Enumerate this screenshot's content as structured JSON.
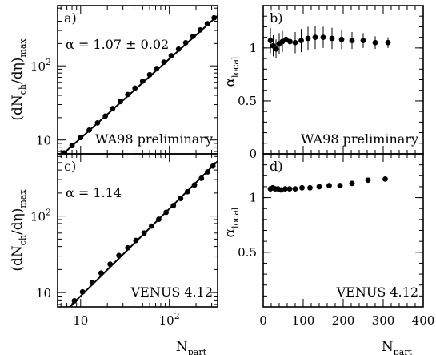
{
  "chart_data": [
    {
      "panel": "a)",
      "type": "scatter",
      "xscale": "log",
      "yscale": "log",
      "xlim": [
        5.5,
        350
      ],
      "ylim": [
        6.5,
        650
      ],
      "ylabel": "(dN",
      "ylabel_sub1": "ch",
      "ylabel_mid": "/dη)",
      "ylabel_sub2": "max",
      "ytick_labels": [
        {
          "value": 10,
          "base": "10",
          "exp": ""
        },
        {
          "value": 100,
          "base": "10",
          "exp": "2"
        }
      ],
      "annotation": "α =  1.07 ±  0.02",
      "caption": "WA98 preliminary",
      "points": [
        {
          "x": 6.5,
          "y": 6.7
        },
        {
          "x": 8.0,
          "y": 8.4
        },
        {
          "x": 10.0,
          "y": 10.8
        },
        {
          "x": 12.5,
          "y": 13.6
        },
        {
          "x": 15.5,
          "y": 17.0
        },
        {
          "x": 19.0,
          "y": 21.0
        },
        {
          "x": 23.0,
          "y": 26.5
        },
        {
          "x": 28.0,
          "y": 33.0
        },
        {
          "x": 34.0,
          "y": 41.0
        },
        {
          "x": 41.0,
          "y": 50.0
        },
        {
          "x": 50.0,
          "y": 62.0
        },
        {
          "x": 60.0,
          "y": 76.0
        },
        {
          "x": 72.0,
          "y": 92.0
        },
        {
          "x": 87.0,
          "y": 112.0
        },
        {
          "x": 105.0,
          "y": 137.0
        },
        {
          "x": 127.0,
          "y": 168.0
        },
        {
          "x": 153.0,
          "y": 205.0
        },
        {
          "x": 185.0,
          "y": 250.0
        },
        {
          "x": 223.0,
          "y": 305.0
        },
        {
          "x": 268.0,
          "y": 370.0
        },
        {
          "x": 320.0,
          "y": 445.0
        }
      ],
      "fit": {
        "x": [
          5.8,
          350
        ],
        "y": [
          5.9,
          474
        ]
      }
    },
    {
      "panel": "b)",
      "type": "scatter",
      "xscale": "linear",
      "yscale": "linear",
      "xlim": [
        0,
        400
      ],
      "ylim": [
        0,
        1.4
      ],
      "ylabel": "α",
      "ylabel_sub": "local",
      "ytick_labels": [
        {
          "value": 0,
          "label": "0"
        },
        {
          "value": 0.5,
          "label": "0.5"
        },
        {
          "value": 1,
          "label": "1"
        }
      ],
      "caption": "WA98 preliminary",
      "points": [
        {
          "x": 18,
          "y": 1.07,
          "err": 0.12
        },
        {
          "x": 25,
          "y": 1.02,
          "err": 0.1
        },
        {
          "x": 32,
          "y": 0.99,
          "err": 0.09
        },
        {
          "x": 40,
          "y": 1.04,
          "err": 0.1
        },
        {
          "x": 48,
          "y": 1.06,
          "err": 0.1
        },
        {
          "x": 57,
          "y": 1.08,
          "err": 0.1
        },
        {
          "x": 67,
          "y": 1.06,
          "err": 0.1
        },
        {
          "x": 80,
          "y": 1.05,
          "err": 0.1
        },
        {
          "x": 95,
          "y": 1.07,
          "err": 0.11
        },
        {
          "x": 112,
          "y": 1.09,
          "err": 0.11
        },
        {
          "x": 130,
          "y": 1.1,
          "err": 0.11
        },
        {
          "x": 150,
          "y": 1.1,
          "err": 0.1
        },
        {
          "x": 172,
          "y": 1.09,
          "err": 0.1
        },
        {
          "x": 196,
          "y": 1.08,
          "err": 0.09
        },
        {
          "x": 222,
          "y": 1.07,
          "err": 0.08
        },
        {
          "x": 250,
          "y": 1.07,
          "err": 0.07
        },
        {
          "x": 280,
          "y": 1.05,
          "err": 0.06
        },
        {
          "x": 312,
          "y": 1.05,
          "err": 0.05
        }
      ]
    },
    {
      "panel": "c)",
      "type": "scatter",
      "xscale": "log",
      "yscale": "log",
      "xlim": [
        5.5,
        350
      ],
      "ylim": [
        6.5,
        650
      ],
      "ylabel": "(dN",
      "ylabel_sub1": "ch",
      "ylabel_mid": "/dη)",
      "ylabel_sub2": "max",
      "ytick_labels": [
        {
          "value": 10,
          "base": "10",
          "exp": ""
        },
        {
          "value": 100,
          "base": "10",
          "exp": "2"
        }
      ],
      "xtick_labels": [
        {
          "value": 10,
          "base": "10",
          "exp": ""
        },
        {
          "value": 100,
          "base": "10",
          "exp": "2"
        }
      ],
      "xlabel": "N",
      "xlabel_sub": "part",
      "annotation": "α =  1.14",
      "caption": "VENUS 4.12",
      "points": [
        {
          "x": 8.5,
          "y": 7.8
        },
        {
          "x": 10.5,
          "y": 10.2
        },
        {
          "x": 13.5,
          "y": 13.5
        },
        {
          "x": 17.0,
          "y": 18.0
        },
        {
          "x": 21.5,
          "y": 23.5
        },
        {
          "x": 27.0,
          "y": 30.5
        },
        {
          "x": 34.0,
          "y": 38.5
        },
        {
          "x": 42.0,
          "y": 48.0
        },
        {
          "x": 52.0,
          "y": 60.0
        },
        {
          "x": 63.0,
          "y": 74.0
        },
        {
          "x": 76.0,
          "y": 91.0
        },
        {
          "x": 92.0,
          "y": 112.0
        },
        {
          "x": 111.0,
          "y": 137.0
        },
        {
          "x": 134.0,
          "y": 170.0
        },
        {
          "x": 160.0,
          "y": 208.0
        },
        {
          "x": 192.0,
          "y": 255.0
        },
        {
          "x": 230.0,
          "y": 312.0
        },
        {
          "x": 270.0,
          "y": 378.0
        },
        {
          "x": 310.0,
          "y": 450.0
        }
      ],
      "fit": {
        "x": [
          6.9,
          350
        ],
        "y": [
          5.9,
          520
        ]
      }
    },
    {
      "panel": "d)",
      "type": "scatter",
      "xscale": "linear",
      "yscale": "linear",
      "xlim": [
        0,
        400
      ],
      "ylim": [
        0,
        1.4
      ],
      "ylabel": "α",
      "ylabel_sub": "local",
      "ytick_labels": [
        {
          "value": 0.5,
          "label": "0.5"
        },
        {
          "value": 1,
          "label": "1"
        }
      ],
      "xtick_labels": [
        {
          "value": 0,
          "label": "0"
        },
        {
          "value": 100,
          "label": "100"
        },
        {
          "value": 200,
          "label": "200"
        },
        {
          "value": 300,
          "label": "300"
        },
        {
          "value": 400,
          "label": "400"
        }
      ],
      "xlabel": "N",
      "xlabel_sub": "part",
      "caption": "VENUS 4.12",
      "points": [
        {
          "x": 18,
          "y": 1.08
        },
        {
          "x": 24,
          "y": 1.09
        },
        {
          "x": 30,
          "y": 1.08
        },
        {
          "x": 37,
          "y": 1.08
        },
        {
          "x": 45,
          "y": 1.07
        },
        {
          "x": 55,
          "y": 1.08
        },
        {
          "x": 66,
          "y": 1.08
        },
        {
          "x": 80,
          "y": 1.08
        },
        {
          "x": 97,
          "y": 1.09
        },
        {
          "x": 117,
          "y": 1.09
        },
        {
          "x": 140,
          "y": 1.1
        },
        {
          "x": 165,
          "y": 1.11
        },
        {
          "x": 192,
          "y": 1.11
        },
        {
          "x": 222,
          "y": 1.13
        },
        {
          "x": 262,
          "y": 1.16
        },
        {
          "x": 305,
          "y": 1.17
        }
      ]
    }
  ]
}
